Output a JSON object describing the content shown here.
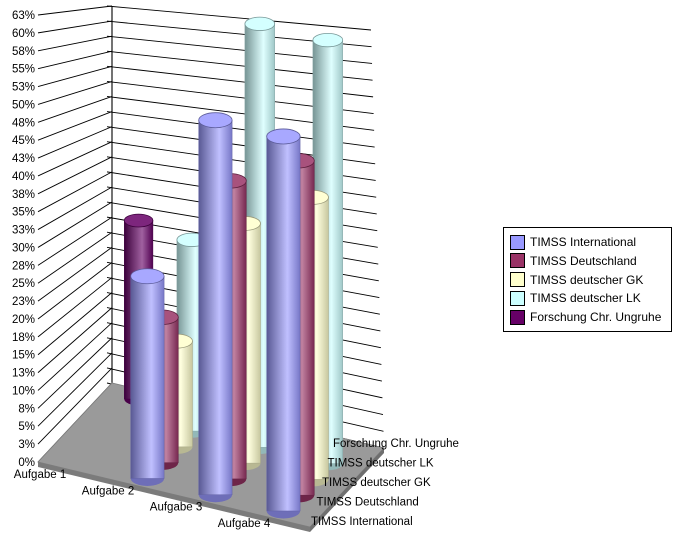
{
  "chart_data": {
    "type": "bar",
    "variant": "3d-cylinder",
    "title": "",
    "background_color": "#FFFFFF",
    "wall_color": "#FFFFFF",
    "floor_color": "#9A9A9A",
    "gridline_color": "#000000",
    "grid": true,
    "categories": [
      "Aufgabe 1",
      "Aufgabe 2",
      "Aufgabe 3",
      "Aufgabe 4"
    ],
    "series": [
      {
        "name": "TIMSS International",
        "color": "#9999FF",
        "values": [
          0,
          27,
          50,
          50
        ]
      },
      {
        "name": "TIMSS Deutschland",
        "color": "#993366",
        "values": [
          0,
          20,
          41,
          46
        ]
      },
      {
        "name": "TIMSS deutscher GK",
        "color": "#FFFFCC",
        "values": [
          0,
          15,
          34,
          40
        ]
      },
      {
        "name": "TIMSS deutscher LK",
        "color": "#CCFFFF",
        "values": [
          0,
          28,
          62,
          62
        ]
      },
      {
        "name": "Forschung Chr. Ungruhe",
        "color": "#660066",
        "values": [
          27,
          0,
          0,
          0
        ]
      }
    ],
    "y_axis": {
      "min": 0,
      "max": 62.5,
      "step": 2.5,
      "unit": "%",
      "tick_labels": [
        "0%",
        "3%",
        "5%",
        "8%",
        "10%",
        "13%",
        "15%",
        "18%",
        "20%",
        "23%",
        "25%",
        "28%",
        "30%",
        "33%",
        "35%",
        "38%",
        "40%",
        "43%",
        "45%",
        "48%",
        "50%",
        "53%",
        "55%",
        "58%",
        "60%",
        "63%"
      ]
    },
    "depth_axis_labels_top_to_bottom": [
      "Forschung Chr. Ungruhe",
      "TIMSS deutscher LK",
      "TIMSS deutscher GK",
      "TIMSS Deutschland",
      "TIMSS International"
    ],
    "legend": {
      "position": "right",
      "border": "#000000",
      "items": [
        "TIMSS International",
        "TIMSS Deutschland",
        "TIMSS deutscher GK",
        "TIMSS deutscher LK",
        "Forschung Chr. Ungruhe"
      ]
    }
  }
}
